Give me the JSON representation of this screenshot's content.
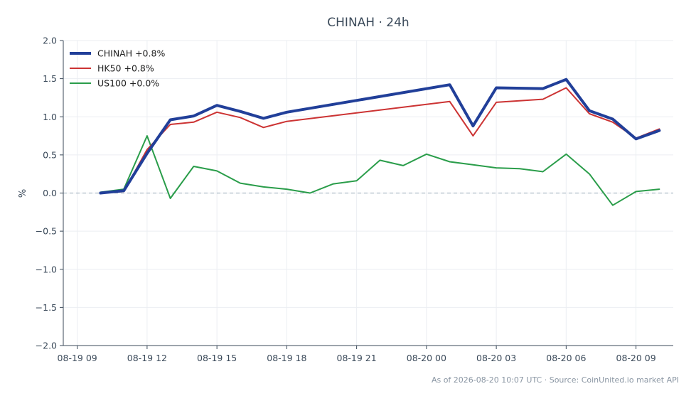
{
  "chart_data": {
    "type": "line",
    "title": "CHINAH · 24h",
    "ylabel": "%",
    "footnote": "As of 2026-08-20 10:07 UTC · Source: CoinUnited.io market API",
    "ylim": [
      -2.0,
      2.0
    ],
    "yticks": [
      "2.0",
      "1.5",
      "1.0",
      "0.5",
      "0.0",
      "−0.5",
      "−1.0",
      "−1.5",
      "−2.0"
    ],
    "ytick_values": [
      2.0,
      1.5,
      1.0,
      0.5,
      0.0,
      -0.5,
      -1.0,
      -1.5,
      -2.0
    ],
    "xtick_labels": [
      "08-19 09",
      "08-19 12",
      "08-19 15",
      "08-19 18",
      "08-19 21",
      "08-20 00",
      "08-20 03",
      "08-20 06",
      "08-20 09"
    ],
    "xtick_hours": [
      0,
      3,
      6,
      9,
      12,
      15,
      18,
      21,
      24
    ],
    "xlim_hours": [
      -0.6,
      25.6
    ],
    "grid": true,
    "zero_line": true,
    "legend_position": "top-left",
    "series": [
      {
        "name": "CHINAH +0.8%",
        "color": "#213f99",
        "width": 4,
        "x": [
          1,
          2,
          3,
          4,
          5,
          6,
          7,
          8,
          9,
          16,
          17,
          18,
          20,
          21,
          22,
          23,
          24,
          25
        ],
        "y": [
          0.0,
          0.03,
          0.52,
          0.96,
          1.01,
          1.15,
          1.07,
          0.98,
          1.06,
          1.42,
          0.88,
          1.38,
          1.37,
          1.49,
          1.08,
          0.97,
          0.71,
          0.82
        ]
      },
      {
        "name": "HK50 +0.8%",
        "color": "#cc3333",
        "width": 2,
        "x": [
          1,
          2,
          3,
          4,
          5,
          6,
          7,
          8,
          9,
          16,
          17,
          18,
          20,
          21,
          22,
          23,
          24,
          25
        ],
        "y": [
          0.0,
          0.02,
          0.57,
          0.9,
          0.93,
          1.06,
          0.99,
          0.86,
          0.94,
          1.2,
          0.75,
          1.19,
          1.23,
          1.38,
          1.04,
          0.93,
          0.72,
          0.84
        ]
      },
      {
        "name": "US100 +0.0%",
        "color": "#2a9d4a",
        "width": 2,
        "x": [
          1,
          2,
          3,
          4,
          5,
          6,
          7,
          8,
          9,
          10,
          11,
          12,
          13,
          14,
          15,
          16,
          17,
          18,
          19,
          20,
          21,
          22,
          23,
          24,
          25
        ],
        "y": [
          0.01,
          0.05,
          0.75,
          -0.07,
          0.35,
          0.29,
          0.13,
          0.08,
          0.05,
          0.0,
          0.12,
          0.16,
          0.43,
          0.36,
          0.51,
          0.41,
          0.37,
          0.33,
          0.32,
          0.28,
          0.51,
          0.25,
          -0.16,
          0.02,
          0.05
        ]
      }
    ]
  }
}
